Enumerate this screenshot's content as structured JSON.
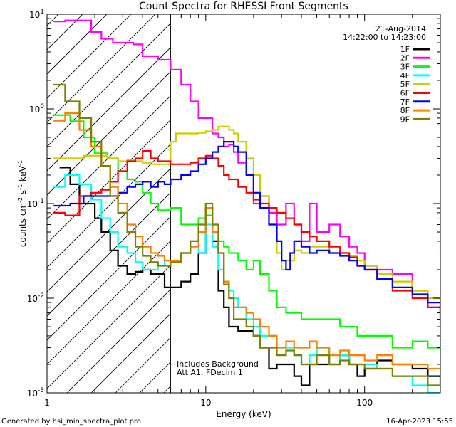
{
  "chart_data": {
    "type": "line",
    "title": "Count Spectra for RHESSI Front Segments",
    "xlabel": "Energy (keV)",
    "ylabel_parts": {
      "base": "counts cm",
      "exp1": "-2",
      "mid1": " s",
      "exp2": "-1",
      "mid2": " keV",
      "exp3": "-1"
    },
    "xscale": "log",
    "yscale": "log",
    "xlim": [
      1,
      300
    ],
    "ylim": [
      0.001,
      10
    ],
    "x_ticks": [
      {
        "value": 1,
        "label": "1"
      },
      {
        "value": 10,
        "label": "10"
      },
      {
        "value": 100,
        "label": "100"
      }
    ],
    "y_ticks": [
      {
        "value": 0.001,
        "base": "10",
        "exp": "-3"
      },
      {
        "value": 0.01,
        "base": "10",
        "exp": "-2"
      },
      {
        "value": 0.1,
        "base": "10",
        "exp": "-1"
      },
      {
        "value": 1,
        "base": "10",
        "exp": "0"
      },
      {
        "value": 10,
        "base": "10",
        "exp": "1"
      }
    ],
    "date": "21-Aug-2014",
    "time_range": "14:22:00 to 14:23:00",
    "annotation_lines": [
      "Includes Background",
      "Att A1, FDecim 1"
    ],
    "hatched_region_max_kev": 6,
    "legend_position": "top-right",
    "series": [
      {
        "name": "1F",
        "color": "#000000",
        "x": [
          1.2,
          1.4,
          1.6,
          1.8,
          2.0,
          2.2,
          2.5,
          2.8,
          3.2,
          3.6,
          4.0,
          4.5,
          5.0,
          5.5,
          6.0,
          7.0,
          8.0,
          9.0,
          10,
          11,
          12,
          13,
          14,
          15,
          16,
          18,
          20,
          22,
          25,
          28,
          32,
          36,
          40,
          45,
          50,
          60,
          70,
          80,
          90,
          100,
          120,
          150,
          200,
          250,
          300
        ],
        "y": [
          0.24,
          0.16,
          0.1,
          0.1,
          0.07,
          0.05,
          0.032,
          0.022,
          0.018,
          0.019,
          0.02,
          0.018,
          0.018,
          0.013,
          0.013,
          0.015,
          0.018,
          0.03,
          0.09,
          0.04,
          0.012,
          0.008,
          0.005,
          0.005,
          0.0045,
          0.0045,
          0.004,
          0.003,
          0.0018,
          0.002,
          0.002,
          0.0015,
          0.0012,
          0.002,
          0.002,
          0.002,
          0.0025,
          0.002,
          0.0015,
          0.0018,
          0.0022,
          0.002,
          0.0018,
          0.0015,
          0.0012
        ]
      },
      {
        "name": "2F",
        "color": "#ff00ff",
        "x": [
          1.1,
          1.3,
          1.6,
          1.9,
          2.2,
          2.6,
          3.0,
          3.5,
          4.0,
          5.0,
          6.0,
          7.0,
          8.0,
          9.0,
          10,
          11,
          12,
          13,
          14,
          15,
          16,
          18,
          20,
          22,
          25,
          28,
          32,
          36,
          40,
          45,
          50,
          60,
          70,
          80,
          90,
          100,
          120,
          150,
          200,
          250,
          300
        ],
        "y": [
          8.4,
          8.6,
          8.6,
          6.5,
          5.5,
          5.0,
          5.0,
          4.8,
          3.6,
          3.3,
          2.6,
          1.8,
          1.2,
          0.8,
          0.8,
          0.55,
          0.5,
          0.4,
          0.42,
          0.35,
          0.27,
          0.2,
          0.1,
          0.12,
          0.08,
          0.06,
          0.1,
          0.06,
          0.04,
          0.1,
          0.05,
          0.06,
          0.045,
          0.035,
          0.03,
          0.022,
          0.02,
          0.018,
          0.012,
          0.008,
          0.005
        ]
      },
      {
        "name": "3F",
        "color": "#00ff00",
        "x": [
          1.1,
          1.4,
          1.7,
          2.0,
          2.4,
          2.8,
          3.2,
          3.6,
          4.0,
          4.5,
          5.0,
          5.5,
          6.0,
          7.0,
          8.0,
          9.0,
          10,
          11,
          12,
          13,
          14,
          15,
          16,
          18,
          20,
          22,
          25,
          28,
          32,
          36,
          40,
          45,
          50,
          60,
          70,
          80,
          90,
          100,
          120,
          150,
          200,
          250,
          300
        ],
        "y": [
          0.86,
          0.74,
          0.5,
          0.34,
          0.3,
          0.22,
          0.18,
          0.17,
          0.13,
          0.1,
          0.085,
          0.085,
          0.09,
          0.06,
          0.06,
          0.07,
          0.075,
          0.05,
          0.04,
          0.035,
          0.03,
          0.03,
          0.025,
          0.02,
          0.025,
          0.018,
          0.012,
          0.008,
          0.007,
          0.007,
          0.006,
          0.006,
          0.006,
          0.006,
          0.005,
          0.005,
          0.004,
          0.004,
          0.004,
          0.003,
          0.0035,
          0.003,
          0.003
        ]
      },
      {
        "name": "4F",
        "color": "#00ffff",
        "x": [
          1.1,
          1.3,
          1.6,
          1.9,
          2.2,
          2.5,
          2.8,
          3.2,
          3.6,
          4.0,
          4.5,
          5.0,
          5.5,
          6.0,
          7.0,
          8.0,
          9.0,
          10,
          11,
          12,
          13,
          14,
          15,
          16,
          18,
          20,
          22,
          25,
          28,
          32,
          36,
          40,
          45,
          50,
          60,
          70,
          80,
          90,
          100,
          120,
          150,
          200,
          250,
          300
        ],
        "y": [
          0.15,
          0.2,
          0.16,
          0.11,
          0.07,
          0.05,
          0.035,
          0.03,
          0.024,
          0.02,
          0.02,
          0.022,
          0.025,
          0.025,
          0.03,
          0.04,
          0.03,
          0.06,
          0.035,
          0.02,
          0.015,
          0.012,
          0.01,
          0.008,
          0.006,
          0.005,
          0.004,
          0.004,
          0.003,
          0.003,
          0.0025,
          0.002,
          0.0025,
          0.003,
          0.002,
          0.0025,
          0.002,
          0.002,
          0.002,
          0.0018,
          0.0015,
          0.0012,
          0.001,
          0.001
        ]
      },
      {
        "name": "5F",
        "color": "#cccc00",
        "x": [
          1.1,
          1.4,
          1.7,
          2.0,
          2.4,
          2.8,
          3.2,
          3.6,
          4.0,
          4.5,
          5.0,
          5.5,
          6.0,
          6.5,
          7.0,
          8.0,
          9.0,
          10,
          11,
          12,
          13,
          14,
          15,
          16,
          18,
          20,
          22,
          25,
          28,
          30,
          32,
          36,
          40,
          45,
          50,
          60,
          70,
          80,
          90,
          100,
          120,
          150,
          200,
          250,
          300
        ],
        "y": [
          0.3,
          0.3,
          0.32,
          0.32,
          0.3,
          0.28,
          0.29,
          0.28,
          0.27,
          0.26,
          0.26,
          0.26,
          0.45,
          0.55,
          0.55,
          0.55,
          0.56,
          0.58,
          0.6,
          0.65,
          0.65,
          0.6,
          0.55,
          0.45,
          0.3,
          0.2,
          0.12,
          0.06,
          0.03,
          0.02,
          0.025,
          0.032,
          0.03,
          0.035,
          0.035,
          0.03,
          0.03,
          0.028,
          0.025,
          0.022,
          0.018,
          0.015,
          0.012,
          0.01,
          0.008
        ]
      },
      {
        "name": "6F",
        "color": "#ff0000",
        "x": [
          1.1,
          1.3,
          1.6,
          1.9,
          2.2,
          2.5,
          2.8,
          3.2,
          3.6,
          4.0,
          4.5,
          5.0,
          6.0,
          7.0,
          8.0,
          9.0,
          10,
          11,
          12,
          13,
          14,
          16,
          18,
          20,
          22,
          25,
          28,
          32,
          36,
          40,
          45,
          50,
          60,
          70,
          80,
          90,
          100,
          120,
          150,
          200,
          250,
          300
        ],
        "y": [
          0.08,
          0.075,
          0.12,
          0.13,
          0.14,
          0.17,
          0.22,
          0.28,
          0.3,
          0.36,
          0.3,
          0.28,
          0.26,
          0.26,
          0.27,
          0.3,
          0.32,
          0.3,
          0.25,
          0.2,
          0.18,
          0.15,
          0.13,
          0.11,
          0.1,
          0.09,
          0.08,
          0.07,
          0.06,
          0.05,
          0.045,
          0.04,
          0.035,
          0.03,
          0.027,
          0.022,
          0.02,
          0.016,
          0.012,
          0.01,
          0.008,
          0.006
        ]
      },
      {
        "name": "7F",
        "color": "#0000ff",
        "x": [
          1.1,
          1.4,
          1.7,
          2.0,
          2.4,
          2.8,
          3.2,
          3.6,
          4.0,
          4.5,
          5.0,
          5.5,
          6.0,
          7.0,
          8.0,
          9.0,
          10,
          11,
          12,
          13,
          14,
          15,
          16,
          18,
          20,
          22,
          25,
          28,
          30,
          32,
          34,
          36,
          40,
          45,
          50,
          60,
          70,
          80,
          90,
          100,
          120,
          150,
          200,
          250,
          300
        ],
        "y": [
          0.095,
          0.1,
          0.12,
          0.12,
          0.12,
          0.13,
          0.15,
          0.16,
          0.17,
          0.15,
          0.17,
          0.16,
          0.18,
          0.2,
          0.22,
          0.26,
          0.3,
          0.35,
          0.4,
          0.45,
          0.45,
          0.4,
          0.35,
          0.2,
          0.13,
          0.09,
          0.06,
          0.04,
          0.025,
          0.02,
          0.03,
          0.04,
          0.035,
          0.03,
          0.032,
          0.03,
          0.028,
          0.025,
          0.022,
          0.02,
          0.016,
          0.013,
          0.011,
          0.009,
          0.007
        ]
      },
      {
        "name": "8F",
        "color": "#ff8000",
        "x": [
          1.1,
          1.3,
          1.6,
          1.9,
          2.2,
          2.5,
          2.8,
          3.2,
          3.6,
          4.0,
          4.5,
          5.0,
          5.5,
          6.0,
          7.0,
          8.0,
          9.0,
          10,
          11,
          12,
          13,
          14,
          15,
          16,
          18,
          20,
          22,
          25,
          28,
          32,
          36,
          40,
          45,
          50,
          60,
          70,
          80,
          90,
          100,
          120,
          150,
          200,
          250,
          300
        ],
        "y": [
          0.75,
          0.9,
          0.6,
          0.4,
          0.25,
          0.15,
          0.1,
          0.06,
          0.045,
          0.035,
          0.03,
          0.028,
          0.025,
          0.025,
          0.03,
          0.035,
          0.05,
          0.09,
          0.05,
          0.03,
          0.015,
          0.01,
          0.008,
          0.008,
          0.007,
          0.006,
          0.005,
          0.004,
          0.003,
          0.0035,
          0.003,
          0.003,
          0.0035,
          0.003,
          0.0025,
          0.0028,
          0.0025,
          0.0025,
          0.0022,
          0.0025,
          0.002,
          0.002,
          0.0018,
          0.0015
        ]
      },
      {
        "name": "9F",
        "color": "#808000",
        "x": [
          1.1,
          1.3,
          1.6,
          1.9,
          2.2,
          2.5,
          2.8,
          3.2,
          3.6,
          4.0,
          4.5,
          5.0,
          5.5,
          6.0,
          7.0,
          8.0,
          9.0,
          10,
          11,
          12,
          13,
          14,
          15,
          16,
          18,
          20,
          22,
          25,
          28,
          32,
          36,
          40,
          45,
          50,
          60,
          70,
          80,
          90,
          100,
          120,
          150,
          200,
          250,
          300
        ],
        "y": [
          1.8,
          1.2,
          0.8,
          0.45,
          0.25,
          0.12,
          0.08,
          0.05,
          0.035,
          0.028,
          0.024,
          0.022,
          0.022,
          0.024,
          0.03,
          0.04,
          0.06,
          0.1,
          0.06,
          0.03,
          0.014,
          0.01,
          0.006,
          0.006,
          0.005,
          0.004,
          0.003,
          0.003,
          0.0025,
          0.0028,
          0.0025,
          0.002,
          0.002,
          0.0025,
          0.002,
          0.0022,
          0.002,
          0.002,
          0.0018,
          0.0018,
          0.0015,
          0.0015,
          0.0012,
          0.0012
        ]
      }
    ]
  },
  "footer": {
    "left": "Generated by hsi_min_spectra_plot.pro",
    "right": "16-Apr-2023 15:55"
  }
}
